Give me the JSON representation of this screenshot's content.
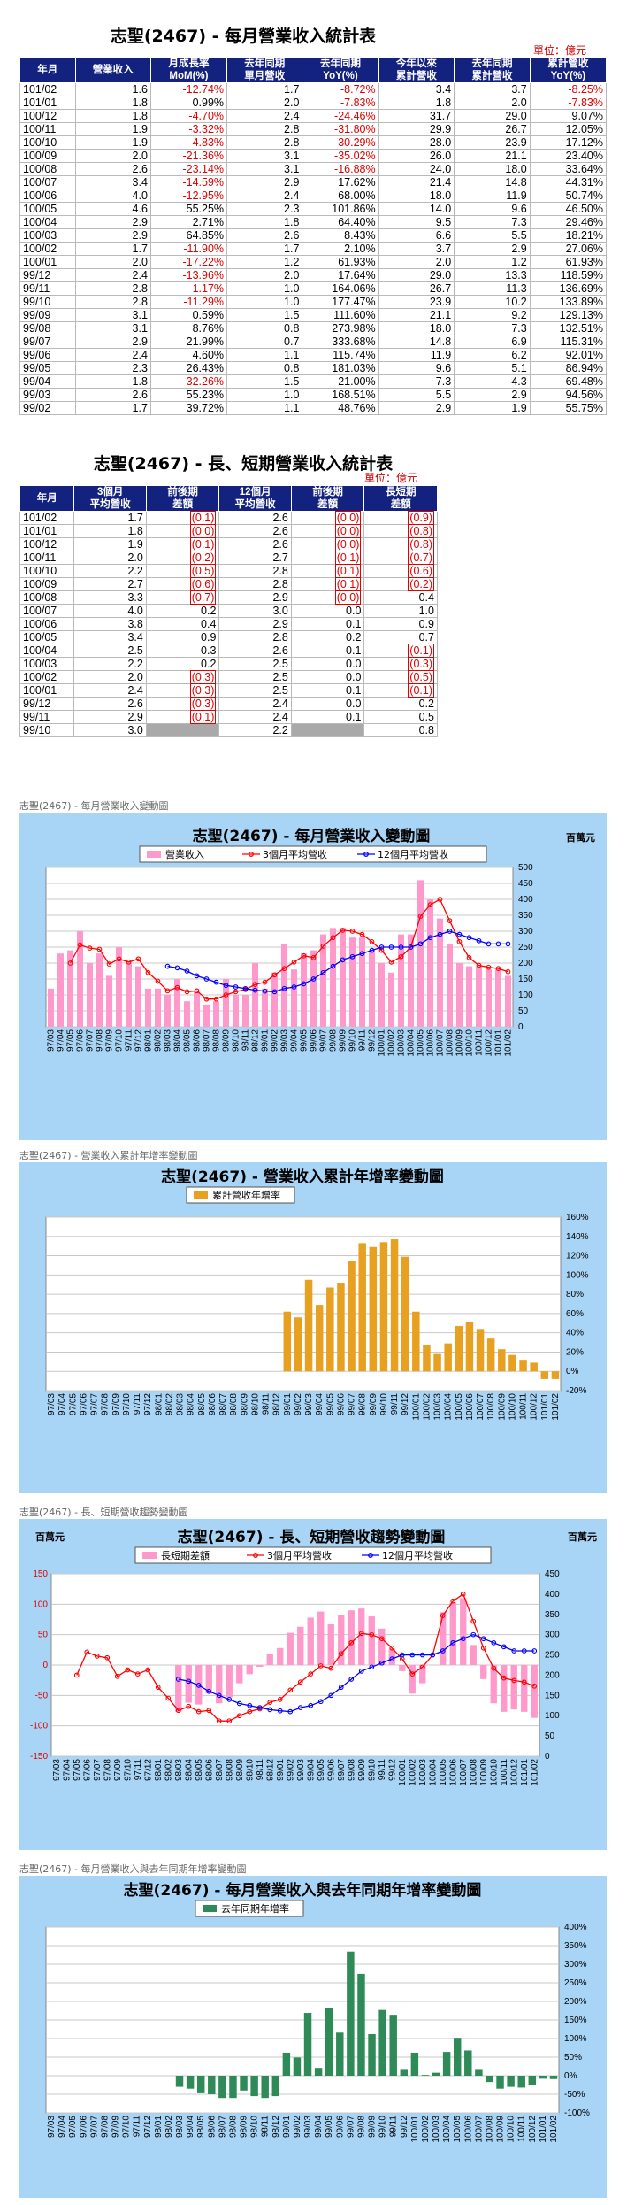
{
  "table1": {
    "title": "志聖(2467) - 每月營業收入統計表",
    "unit": "單位：億元",
    "headers": [
      "年月",
      "營業收入",
      "月成長率\nMoM(%)",
      "去年同期\n單月營收",
      "去年同期\nYoY(%)",
      "今年以來\n累計營收",
      "去年同期\n累計營收",
      "累計營收\nYoY(%)"
    ],
    "rows": [
      [
        "101/02",
        "1.6",
        "-12.74%",
        "1.7",
        "-8.72%",
        "3.4",
        "3.7",
        "-8.25%"
      ],
      [
        "101/01",
        "1.8",
        "0.99%",
        "2.0",
        "-7.83%",
        "1.8",
        "2.0",
        "-7.83%"
      ],
      [
        "100/12",
        "1.8",
        "-4.70%",
        "2.4",
        "-24.46%",
        "31.7",
        "29.0",
        "9.07%"
      ],
      [
        "100/11",
        "1.9",
        "-3.32%",
        "2.8",
        "-31.80%",
        "29.9",
        "26.7",
        "12.05%"
      ],
      [
        "100/10",
        "1.9",
        "-4.83%",
        "2.8",
        "-30.29%",
        "28.0",
        "23.9",
        "17.12%"
      ],
      [
        "100/09",
        "2.0",
        "-21.36%",
        "3.1",
        "-35.02%",
        "26.0",
        "21.1",
        "23.40%"
      ],
      [
        "100/08",
        "2.6",
        "-23.14%",
        "3.1",
        "-16.88%",
        "24.0",
        "18.0",
        "33.64%"
      ],
      [
        "100/07",
        "3.4",
        "-14.59%",
        "2.9",
        "17.62%",
        "21.4",
        "14.8",
        "44.31%"
      ],
      [
        "100/06",
        "4.0",
        "-12.95%",
        "2.4",
        "68.00%",
        "18.0",
        "11.9",
        "50.74%"
      ],
      [
        "100/05",
        "4.6",
        "55.25%",
        "2.3",
        "101.86%",
        "14.0",
        "9.6",
        "46.50%"
      ],
      [
        "100/04",
        "2.9",
        "2.71%",
        "1.8",
        "64.40%",
        "9.5",
        "7.3",
        "29.46%"
      ],
      [
        "100/03",
        "2.9",
        "64.85%",
        "2.6",
        "8.43%",
        "6.6",
        "5.5",
        "18.21%"
      ],
      [
        "100/02",
        "1.7",
        "-11.90%",
        "1.7",
        "2.10%",
        "3.7",
        "2.9",
        "27.06%"
      ],
      [
        "100/01",
        "2.0",
        "-17.22%",
        "1.2",
        "61.93%",
        "2.0",
        "1.2",
        "61.93%"
      ],
      [
        "99/12",
        "2.4",
        "-13.96%",
        "2.0",
        "17.64%",
        "29.0",
        "13.3",
        "118.59%"
      ],
      [
        "99/11",
        "2.8",
        "-1.17%",
        "1.0",
        "164.06%",
        "26.7",
        "11.3",
        "136.69%"
      ],
      [
        "99/10",
        "2.8",
        "-11.29%",
        "1.0",
        "177.47%",
        "23.9",
        "10.2",
        "133.89%"
      ],
      [
        "99/09",
        "3.1",
        "0.59%",
        "1.5",
        "111.60%",
        "21.1",
        "9.2",
        "129.13%"
      ],
      [
        "99/08",
        "3.1",
        "8.76%",
        "0.8",
        "273.98%",
        "18.0",
        "7.3",
        "132.51%"
      ],
      [
        "99/07",
        "2.9",
        "21.99%",
        "0.7",
        "333.68%",
        "14.8",
        "6.9",
        "115.31%"
      ],
      [
        "99/06",
        "2.4",
        "4.60%",
        "1.1",
        "115.74%",
        "11.9",
        "6.2",
        "92.01%"
      ],
      [
        "99/05",
        "2.3",
        "26.43%",
        "0.8",
        "181.03%",
        "9.6",
        "5.1",
        "86.94%"
      ],
      [
        "99/04",
        "1.8",
        "-32.26%",
        "1.5",
        "21.00%",
        "7.3",
        "4.3",
        "69.48%"
      ],
      [
        "99/03",
        "2.6",
        "55.23%",
        "1.0",
        "168.51%",
        "5.5",
        "2.9",
        "94.56%"
      ],
      [
        "99/02",
        "1.7",
        "39.72%",
        "1.1",
        "48.76%",
        "2.9",
        "1.9",
        "55.75%"
      ]
    ]
  },
  "table2": {
    "title": "志聖(2467) - 長、短期營業收入統計表",
    "unit": "單位：億元",
    "headers": [
      "年月",
      "3個月\n平均營收",
      "前後期\n差額",
      "12個月\n平均營收",
      "前後期\n差額",
      "長短期\n差額"
    ],
    "rows": [
      [
        "101/02",
        "1.7",
        "(0.1)",
        "2.6",
        "(0.0)",
        "(0.9)"
      ],
      [
        "101/01",
        "1.8",
        "(0.0)",
        "2.6",
        "(0.0)",
        "(0.8)"
      ],
      [
        "100/12",
        "1.9",
        "(0.1)",
        "2.6",
        "(0.0)",
        "(0.8)"
      ],
      [
        "100/11",
        "2.0",
        "(0.2)",
        "2.7",
        "(0.1)",
        "(0.7)"
      ],
      [
        "100/10",
        "2.2",
        "(0.5)",
        "2.8",
        "(0.1)",
        "(0.6)"
      ],
      [
        "100/09",
        "2.7",
        "(0.6)",
        "2.8",
        "(0.1)",
        "(0.2)"
      ],
      [
        "100/08",
        "3.3",
        "(0.7)",
        "2.9",
        "(0.0)",
        "0.4"
      ],
      [
        "100/07",
        "4.0",
        "0.2",
        "3.0",
        "0.0",
        "1.0"
      ],
      [
        "100/06",
        "3.8",
        "0.4",
        "2.9",
        "0.1",
        "0.9"
      ],
      [
        "100/05",
        "3.4",
        "0.9",
        "2.8",
        "0.2",
        "0.7"
      ],
      [
        "100/04",
        "2.5",
        "0.3",
        "2.6",
        "0.1",
        "(0.1)"
      ],
      [
        "100/03",
        "2.2",
        "0.2",
        "2.5",
        "0.0",
        "(0.3)"
      ],
      [
        "100/02",
        "2.0",
        "(0.3)",
        "2.5",
        "0.0",
        "(0.5)"
      ],
      [
        "100/01",
        "2.4",
        "(0.3)",
        "2.5",
        "0.1",
        "(0.1)"
      ],
      [
        "99/12",
        "2.6",
        "(0.3)",
        "2.4",
        "0.0",
        "0.2"
      ],
      [
        "99/11",
        "2.9",
        "(0.1)",
        "2.4",
        "0.1",
        "0.5"
      ],
      [
        "99/10",
        "3.0",
        "",
        "2.2",
        "",
        "0.8"
      ]
    ]
  },
  "captions": [
    "志聖(2467) - 每月營業收入變動圖",
    "志聖(2467) -  營業收入累計年增率變動圖",
    "志聖(2467) -  長、短期營收趨勢變動圖",
    "志聖(2467) -  每月營業收入與去年同期年增率變動圖"
  ],
  "colors": {
    "header_bg": "#13217f",
    "panel_bg": "#a8d4f5",
    "pink": "#ff99cc",
    "red": "#ff0000",
    "blue": "#0000ff",
    "orange": "#e8a020",
    "green": "#2e8b57",
    "neg_text": "#e00000"
  },
  "chart_data": [
    {
      "type": "bar",
      "title": "志聖(2467) - 每月營業收入變動圖",
      "unit_label": "百萬元",
      "legend": [
        "營業收入",
        "3個月平均營收",
        "12個月平均營收"
      ],
      "legend_position": "top",
      "y_right": {
        "ylim": [
          0,
          500
        ],
        "ticks": [
          0,
          50,
          100,
          150,
          200,
          250,
          300,
          350,
          400,
          450,
          500
        ]
      },
      "categories": [
        "97/03",
        "97/04",
        "97/05",
        "97/06",
        "97/07",
        "97/08",
        "97/09",
        "97/10",
        "97/11",
        "97/12",
        "98/01",
        "98/02",
        "98/03",
        "98/04",
        "98/05",
        "98/06",
        "98/07",
        "98/08",
        "98/09",
        "98/10",
        "98/11",
        "98/12",
        "99/01",
        "99/02",
        "99/03",
        "99/04",
        "99/05",
        "99/06",
        "99/07",
        "99/08",
        "99/09",
        "99/10",
        "99/11",
        "99/12",
        "100/01",
        "100/02",
        "100/03",
        "100/04",
        "100/05",
        "100/06",
        "100/07",
        "100/08",
        "100/09",
        "100/10",
        "100/11",
        "100/12",
        "101/01",
        "101/02"
      ],
      "series": [
        {
          "name": "營業收入",
          "type": "bar",
          "values": [
            120,
            230,
            240,
            300,
            200,
            230,
            160,
            250,
            200,
            190,
            120,
            120,
            100,
            150,
            80,
            110,
            70,
            80,
            150,
            100,
            100,
            200,
            120,
            170,
            260,
            180,
            230,
            240,
            290,
            310,
            310,
            280,
            280,
            240,
            200,
            170,
            290,
            290,
            460,
            400,
            340,
            260,
            200,
            190,
            190,
            180,
            180,
            160
          ]
        },
        {
          "name": "3個月平均營收",
          "type": "line",
          "values": [
            null,
            null,
            200,
            257,
            247,
            243,
            197,
            213,
            203,
            213,
            170,
            143,
            113,
            123,
            110,
            113,
            87,
            87,
            100,
            110,
            117,
            133,
            140,
            163,
            183,
            203,
            223,
            217,
            253,
            280,
            303,
            300,
            290,
            267,
            240,
            203,
            220,
            250,
            347,
            383,
            400,
            333,
            267,
            217,
            193,
            187,
            183,
            173
          ]
        },
        {
          "name": "12個月平均營收",
          "type": "line",
          "values": [
            null,
            null,
            null,
            null,
            null,
            null,
            null,
            null,
            null,
            null,
            null,
            null,
            190,
            185,
            175,
            160,
            150,
            140,
            130,
            125,
            120,
            115,
            112,
            110,
            120,
            125,
            135,
            150,
            170,
            190,
            210,
            220,
            230,
            240,
            250,
            250,
            250,
            250,
            260,
            280,
            290,
            300,
            290,
            280,
            270,
            260,
            260,
            260
          ]
        }
      ]
    },
    {
      "type": "bar",
      "title": "志聖(2467) -  營業收入累計年增率變動圖",
      "legend": [
        "累計營收年增率"
      ],
      "legend_position": "top",
      "y_right": {
        "ylim": [
          -20,
          160
        ],
        "ticks": [
          "-20%",
          "0%",
          "20%",
          "40%",
          "60%",
          "80%",
          "100%",
          "120%",
          "140%",
          "160%"
        ]
      },
      "categories": [
        "97/03",
        "97/04",
        "97/05",
        "97/06",
        "97/07",
        "97/08",
        "97/09",
        "97/10",
        "97/11",
        "97/12",
        "98/01",
        "98/02",
        "98/03",
        "98/04",
        "98/05",
        "98/06",
        "98/07",
        "98/08",
        "98/09",
        "98/10",
        "98/11",
        "98/12",
        "99/01",
        "99/02",
        "99/03",
        "99/04",
        "99/05",
        "99/06",
        "99/07",
        "99/08",
        "99/09",
        "99/10",
        "99/11",
        "99/12",
        "100/01",
        "100/02",
        "100/03",
        "100/04",
        "100/05",
        "100/06",
        "100/07",
        "100/08",
        "100/09",
        "100/10",
        "100/11",
        "100/12",
        "101/01",
        "101/02"
      ],
      "series": [
        {
          "name": "累計營收年增率",
          "values": [
            0,
            0,
            0,
            0,
            0,
            0,
            0,
            0,
            0,
            0,
            0,
            0,
            0,
            0,
            0,
            0,
            0,
            0,
            0,
            0,
            0,
            0,
            62,
            56,
            95,
            69,
            87,
            92,
            115,
            133,
            129,
            134,
            137,
            119,
            62,
            27,
            18,
            29,
            47,
            51,
            44,
            34,
            23,
            17,
            12,
            9,
            -8,
            -8
          ]
        }
      ]
    },
    {
      "type": "bar",
      "title": "志聖(2467) -  長、短期營收趨勢變動圖",
      "unit_label": "百萬元",
      "legend": [
        "長短期差額",
        "3個月平均營收",
        "12個月平均營收"
      ],
      "legend_position": "top",
      "y_left": {
        "ylim": [
          -150,
          150
        ],
        "ticks": [
          -150,
          -100,
          -50,
          0,
          50,
          100,
          150
        ]
      },
      "y_right": {
        "ylim": [
          0,
          450
        ],
        "ticks": [
          0,
          50,
          100,
          150,
          200,
          250,
          300,
          350,
          400,
          450
        ]
      },
      "categories": [
        "97/03",
        "97/04",
        "97/05",
        "97/06",
        "97/07",
        "97/08",
        "97/09",
        "97/10",
        "97/11",
        "97/12",
        "98/01",
        "98/02",
        "98/03",
        "98/04",
        "98/05",
        "98/06",
        "98/07",
        "98/08",
        "98/09",
        "98/10",
        "98/11",
        "98/12",
        "99/01",
        "99/02",
        "99/03",
        "99/04",
        "99/05",
        "99/06",
        "99/07",
        "99/08",
        "99/09",
        "99/10",
        "99/11",
        "99/12",
        "100/01",
        "100/02",
        "100/03",
        "100/04",
        "100/05",
        "100/06",
        "100/07",
        "100/08",
        "100/09",
        "100/10",
        "100/11",
        "100/12",
        "101/01",
        "101/02"
      ],
      "series": [
        {
          "name": "長短期差額",
          "type": "bar",
          "values": [
            null,
            null,
            null,
            null,
            null,
            null,
            null,
            null,
            null,
            null,
            null,
            null,
            -77,
            -62,
            -65,
            -47,
            -63,
            -53,
            -30,
            -15,
            -3,
            18,
            28,
            53,
            63,
            78,
            88,
            67,
            83,
            90,
            93,
            80,
            60,
            27,
            -10,
            -47,
            -30,
            0,
            87,
            103,
            110,
            33,
            -23,
            -63,
            -77,
            -73,
            -77,
            -87
          ]
        },
        {
          "name": "3個月平均營收",
          "type": "line",
          "values": [
            null,
            null,
            200,
            257,
            247,
            243,
            197,
            213,
            203,
            213,
            170,
            143,
            113,
            123,
            110,
            113,
            87,
            87,
            100,
            110,
            117,
            133,
            140,
            163,
            183,
            203,
            223,
            217,
            253,
            280,
            303,
            300,
            290,
            267,
            240,
            203,
            220,
            250,
            347,
            383,
            400,
            333,
            267,
            217,
            193,
            187,
            183,
            173
          ]
        },
        {
          "name": "12個月平均營收",
          "type": "line",
          "values": [
            null,
            null,
            null,
            null,
            null,
            null,
            null,
            null,
            null,
            null,
            null,
            null,
            190,
            185,
            175,
            160,
            150,
            140,
            130,
            125,
            120,
            115,
            112,
            110,
            120,
            125,
            135,
            150,
            170,
            190,
            210,
            220,
            230,
            240,
            250,
            250,
            250,
            250,
            260,
            280,
            290,
            300,
            290,
            280,
            270,
            260,
            260,
            260
          ]
        }
      ]
    },
    {
      "type": "bar",
      "title": "志聖(2467) -  每月營業收入與去年同期年增率變動圖",
      "legend": [
        "去年同期年增率"
      ],
      "legend_position": "top",
      "y_right": {
        "ylim": [
          -100,
          400
        ],
        "ticks": [
          "-100%",
          "-50%",
          "0%",
          "50%",
          "100%",
          "150%",
          "200%",
          "250%",
          "300%",
          "350%",
          "400%"
        ]
      },
      "categories": [
        "97/03",
        "97/04",
        "97/05",
        "97/06",
        "97/07",
        "97/08",
        "97/09",
        "97/10",
        "97/11",
        "97/12",
        "98/01",
        "98/02",
        "98/03",
        "98/04",
        "98/05",
        "98/06",
        "98/07",
        "98/08",
        "98/09",
        "98/10",
        "98/11",
        "98/12",
        "99/01",
        "99/02",
        "99/03",
        "99/04",
        "99/05",
        "99/06",
        "99/07",
        "99/08",
        "99/09",
        "99/10",
        "99/11",
        "99/12",
        "100/01",
        "100/02",
        "100/03",
        "100/04",
        "100/05",
        "100/06",
        "100/07",
        "100/08",
        "100/09",
        "100/10",
        "100/11",
        "100/12",
        "101/01",
        "101/02"
      ],
      "series": [
        {
          "name": "去年同期年增率",
          "values": [
            0,
            0,
            0,
            0,
            0,
            0,
            0,
            0,
            0,
            0,
            0,
            0,
            -30,
            -35,
            -45,
            -50,
            -60,
            -60,
            -40,
            -55,
            -60,
            -55,
            62,
            49,
            169,
            21,
            181,
            116,
            334,
            274,
            112,
            177,
            164,
            18,
            62,
            2,
            8,
            64,
            102,
            68,
            18,
            -17,
            -35,
            -30,
            -32,
            -24,
            -8,
            -9
          ]
        }
      ]
    }
  ]
}
